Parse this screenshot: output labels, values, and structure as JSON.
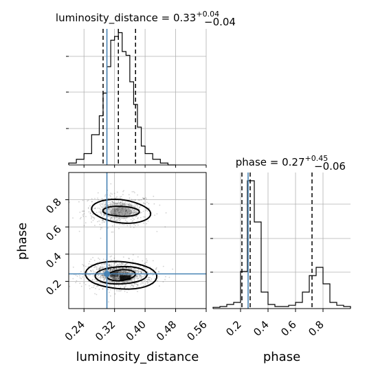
{
  "chart_data": {
    "type": "corner",
    "parameters": [
      "luminosity_distance",
      "phase"
    ],
    "truths": {
      "luminosity_distance": 0.3,
      "phase": 0.255
    },
    "truth_color": "#4682b4",
    "grid": true,
    "panels": {
      "luminosity_distance_hist": {
        "title": "luminosity_distance = 0.33",
        "title_sup": "+0.04",
        "title_sub": "−0.04",
        "quantiles": [
          0.29,
          0.33,
          0.375
        ],
        "xlim": [
          0.2,
          0.56
        ],
        "bins": [
          0.2,
          0.22,
          0.24,
          0.26,
          0.28,
          0.29,
          0.3,
          0.31,
          0.32,
          0.33,
          0.34,
          0.35,
          0.36,
          0.37,
          0.38,
          0.39,
          0.4,
          0.42,
          0.44,
          0.46,
          0.48
        ],
        "counts": [
          0.5,
          1.5,
          3,
          8,
          13,
          19,
          26,
          33,
          34,
          35,
          30,
          29,
          22,
          16,
          10,
          5,
          3,
          1.5,
          0.5,
          0
        ]
      },
      "phase_hist": {
        "title": "phase = 0.27",
        "title_sup": "+0.45",
        "title_sub": "−0.06",
        "quantiles": [
          0.21,
          0.27,
          0.72
        ],
        "xlim": [
          0.0,
          1.0
        ],
        "bins": [
          0.0,
          0.05,
          0.1,
          0.15,
          0.2,
          0.25,
          0.3,
          0.35,
          0.4,
          0.45,
          0.5,
          0.55,
          0.6,
          0.65,
          0.7,
          0.75,
          0.8,
          0.85,
          0.9,
          0.95,
          1.0
        ],
        "counts": [
          0.3,
          0.5,
          1,
          1.5,
          9,
          31,
          21,
          4,
          1,
          0.5,
          0.5,
          0.8,
          1.5,
          4,
          8,
          10,
          6,
          1.5,
          0.8,
          0.5
        ]
      },
      "scatter_2d": {
        "xlim": [
          0.2,
          0.56
        ],
        "ylim": [
          0.0,
          1.0
        ],
        "xticks": [
          "0.24",
          "0.32",
          "0.40",
          "0.48",
          "0.56"
        ],
        "yticks": [
          "0.2",
          "0.4",
          "0.6",
          "0.8"
        ],
        "modes": [
          {
            "center": [
              0.33,
              0.72
            ],
            "sigma": [
              0.045,
              0.06
            ],
            "weight": 0.35
          },
          {
            "center": [
              0.33,
              0.25
            ],
            "sigma": [
              0.045,
              0.05
            ],
            "weight": 0.65
          }
        ]
      },
      "phase_xticks": [
        "0.2",
        "0.4",
        "0.6",
        "0.8"
      ]
    },
    "xlabels": {
      "bottom_left": "luminosity_distance",
      "bottom_right": "phase"
    },
    "ylabel": "phase"
  }
}
